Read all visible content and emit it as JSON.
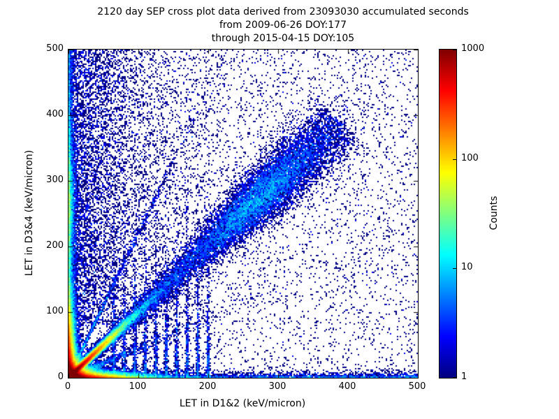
{
  "chart_data": {
    "type": "heatmap",
    "title_lines": [
      "2120 day SEP cross plot data derived from 23093030 accumulated seconds",
      "from 2009-06-26 DOY:177",
      "through 2015-04-15 DOY:105"
    ],
    "xlabel": "LET in D1&2 (keV/micron)",
    "ylabel": "LET in D3&4 (keV/micron)",
    "xlim": [
      0,
      500
    ],
    "ylim": [
      0,
      500
    ],
    "x_ticks": [
      0,
      100,
      200,
      300,
      400,
      500
    ],
    "y_ticks": [
      0,
      100,
      200,
      300,
      400,
      500
    ],
    "grid": false,
    "colorbar": {
      "label": "Counts",
      "scale": "log",
      "min": 1,
      "max": 1000,
      "ticks": [
        1,
        10,
        100,
        1000
      ],
      "colormap": "jet",
      "stops": [
        {
          "pos": 0.0,
          "color": "#00007f"
        },
        {
          "pos": 0.125,
          "color": "#0000ff"
        },
        {
          "pos": 0.375,
          "color": "#00ffff"
        },
        {
          "pos": 0.625,
          "color": "#ffff00"
        },
        {
          "pos": 0.875,
          "color": "#ff0000"
        },
        {
          "pos": 1.0,
          "color": "#7f0000"
        }
      ]
    },
    "bin_size_units": 2,
    "seed": 20090626,
    "density_components": [
      {
        "name": "hot-core-at-origin",
        "type": "xy",
        "n": 120000,
        "x": {
          "dist": "exp",
          "mean": 6
        },
        "y": {
          "dist": "exp",
          "mean": 6
        }
      },
      {
        "name": "bright-diagonal-streak-near-origin",
        "type": "diag",
        "n": 60000,
        "t": {
          "dist": "exp",
          "mean": 20
        },
        "sigma0": 1.5,
        "sigma_slope": 0.02
      },
      {
        "name": "bottom-edge-dense-band",
        "type": "xy",
        "n": 40000,
        "x": {
          "dist": "exp",
          "mean": 25
        },
        "y": {
          "dist": "exp",
          "mean": 3
        }
      },
      {
        "name": "left-edge-dense-band",
        "type": "xy",
        "n": 40000,
        "x": {
          "dist": "exp",
          "mean": 3
        },
        "y": {
          "dist": "exp",
          "mean": 35
        }
      },
      {
        "name": "left-column-full-height",
        "type": "xy",
        "n": 2500,
        "x": {
          "dist": "exp",
          "mean": 3
        },
        "y": {
          "dist": "uniform",
          "min": 0,
          "max": 500
        }
      },
      {
        "name": "left-column-blob-y200-320",
        "type": "xy",
        "n": 4000,
        "x": {
          "dist": "exp",
          "mean": 3
        },
        "y": {
          "dist": "normal",
          "mean": 265,
          "sigma": 55
        }
      },
      {
        "name": "bottom-row-full-width",
        "type": "xy",
        "n": 2500,
        "x": {
          "dist": "uniform",
          "min": 0,
          "max": 500
        },
        "y": {
          "dist": "exp",
          "mean": 3
        }
      },
      {
        "name": "main-diagonal-band",
        "type": "diag",
        "n": 9000,
        "t": {
          "dist": "uniform",
          "min": 0,
          "max": 390
        },
        "sigma0": 3,
        "sigma_slope": 0.05
      },
      {
        "name": "diagonal-cloud-230-330",
        "type": "diag",
        "n": 8000,
        "t": {
          "dist": "normal",
          "mean": 280,
          "sigma": 45
        },
        "sigma0": 3,
        "sigma_slope": 0.05
      },
      {
        "name": "upper-left-scatter-fan",
        "type": "xy",
        "n": 7000,
        "x": {
          "dist": "exp",
          "mean": 60
        },
        "y": {
          "dist": "uniform",
          "min": 80,
          "max": 500
        }
      },
      {
        "name": "sparse-uniform-background",
        "type": "xy",
        "n": 5000,
        "x": {
          "dist": "uniform",
          "min": 0,
          "max": 500
        },
        "y": {
          "dist": "uniform",
          "min": 0,
          "max": 500
        }
      },
      {
        "name": "steep-ray-from-origin",
        "type": "ray",
        "n": 1200,
        "slope": 2.2,
        "t": {
          "dist": "exp",
          "mean": 60
        },
        "sigma0": 2,
        "sigma_slope": 0.02
      },
      {
        "name": "shallow-ray-from-origin",
        "type": "ray",
        "n": 1200,
        "slope": 0.45,
        "t": {
          "dist": "exp",
          "mean": 60
        },
        "sigma0": 2,
        "sigma_slope": 0.02
      },
      {
        "name": "vertical-striations-low-y",
        "type": "vlines",
        "xs": [
          65,
          80,
          95,
          110,
          125,
          140,
          155,
          170,
          185,
          200
        ],
        "n_each": 350,
        "sigma_x": 1.2,
        "y": {
          "dist": "exp",
          "mean": 70
        }
      }
    ]
  }
}
